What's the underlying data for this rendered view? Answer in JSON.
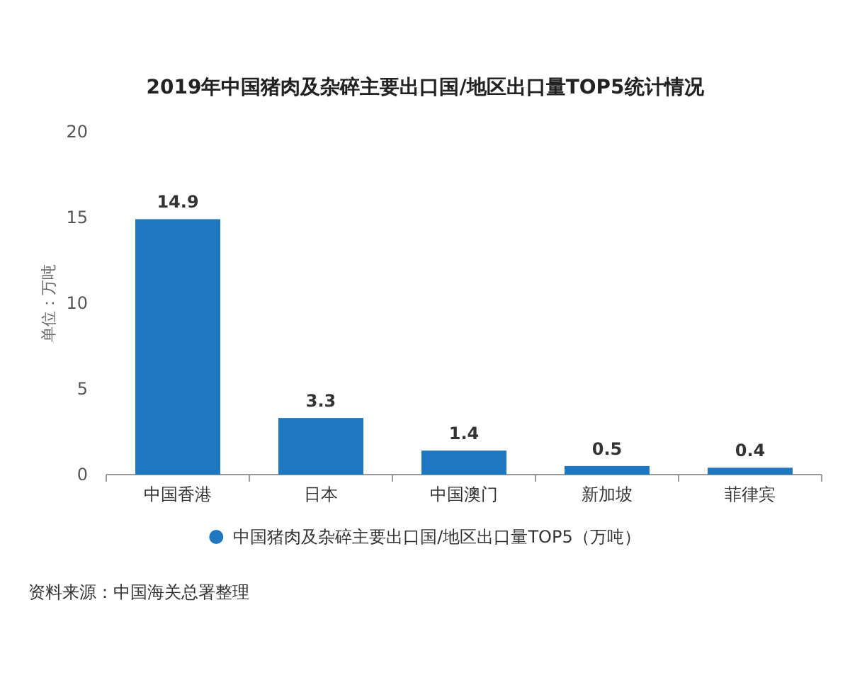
{
  "chart_data": {
    "type": "bar",
    "title": "2019年中国猪肉及杂碎主要出口国/地区出口量TOP5统计情况",
    "ylabel": "单位：万吨",
    "categories": [
      "中国香港",
      "日本",
      "中国澳门",
      "新加坡",
      "菲律宾"
    ],
    "series": [
      {
        "name": "中国猪肉及杂碎主要出口国/地区出口量TOP5（万吨）",
        "color": "#1f77c0",
        "values": [
          14.9,
          3.3,
          1.4,
          0.5,
          0.4
        ]
      }
    ],
    "ylim": [
      0,
      20
    ],
    "yticks": [
      0,
      5,
      10,
      15,
      20
    ],
    "data_labels": true,
    "legend": "bottom",
    "grid": false,
    "annotations": [
      "资料来源：中国海关总署整理"
    ]
  }
}
